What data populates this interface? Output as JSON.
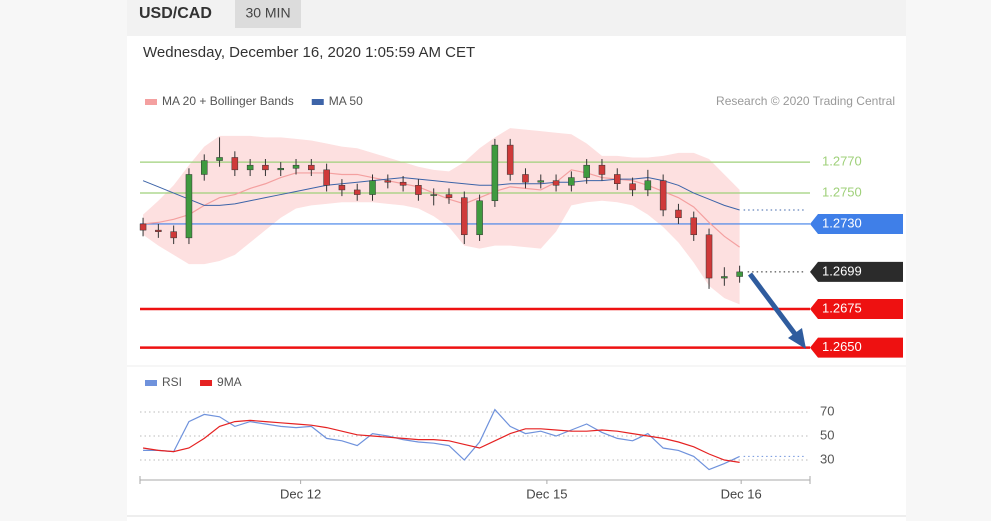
{
  "header": {
    "symbol": "USD/CAD",
    "interval": "30 MIN",
    "datetime": "Wednesday, December 16, 2020 1:05:59 AM CET"
  },
  "chart_data": [
    {
      "type": "candlestick",
      "annotation": "Research © 2020 Trading Central",
      "up_color": "#3f9a3f",
      "down_color": "#cf3a3a",
      "open": [
        1.273,
        1.2726,
        1.2725,
        1.2721,
        1.2762,
        1.2771,
        1.2773,
        1.2765,
        1.2768,
        1.2765,
        1.2766,
        1.2768,
        1.2765,
        1.2755,
        1.2752,
        1.2749,
        1.2758,
        1.2757,
        1.2755,
        1.2749,
        1.2749,
        1.2747,
        1.2723,
        1.2745,
        1.2781,
        1.2762,
        1.2757,
        1.2758,
        1.2755,
        1.276,
        1.2768,
        1.2762,
        1.2756,
        1.2752,
        1.2758,
        1.2739,
        1.2734,
        1.2723,
        1.2695,
        1.2696
      ],
      "high": [
        1.2734,
        1.273,
        1.2729,
        1.2766,
        1.2775,
        1.2786,
        1.2777,
        1.2772,
        1.2772,
        1.277,
        1.2772,
        1.2772,
        1.2769,
        1.2759,
        1.2756,
        1.2762,
        1.2762,
        1.2761,
        1.2759,
        1.2753,
        1.2753,
        1.2751,
        1.2749,
        1.2785,
        1.2785,
        1.2766,
        1.2762,
        1.2762,
        1.2764,
        1.2772,
        1.2772,
        1.2766,
        1.276,
        1.2765,
        1.2762,
        1.2743,
        1.2738,
        1.2727,
        1.2702,
        1.2703
      ],
      "low": [
        1.2722,
        1.2721,
        1.2717,
        1.2717,
        1.2758,
        1.2767,
        1.2761,
        1.2761,
        1.2761,
        1.2761,
        1.2762,
        1.2761,
        1.2751,
        1.2748,
        1.2745,
        1.2745,
        1.2753,
        1.2751,
        1.2745,
        1.2742,
        1.2743,
        1.2717,
        1.2719,
        1.2741,
        1.2758,
        1.2753,
        1.2753,
        1.2751,
        1.2751,
        1.2756,
        1.2758,
        1.2752,
        1.2748,
        1.2748,
        1.2735,
        1.273,
        1.2719,
        1.2688,
        1.269,
        1.2692
      ],
      "close": [
        1.2726,
        1.2725,
        1.2721,
        1.2762,
        1.2771,
        1.2773,
        1.2765,
        1.2768,
        1.2765,
        1.2766,
        1.2768,
        1.2765,
        1.2755,
        1.2752,
        1.2749,
        1.2758,
        1.2757,
        1.2755,
        1.2749,
        1.2749,
        1.2747,
        1.2723,
        1.2745,
        1.2781,
        1.2762,
        1.2757,
        1.2758,
        1.2755,
        1.276,
        1.2768,
        1.2762,
        1.2756,
        1.2752,
        1.2758,
        1.2739,
        1.2734,
        1.2723,
        1.2695,
        1.2696,
        1.2699
      ],
      "series": [
        {
          "name": "MA 20 + Bollinger Bands",
          "color": "#f4a0a0",
          "band_color": "#fde0e0",
          "values": [
            1.273,
            1.2731,
            1.2733,
            1.2736,
            1.2742,
            1.2747,
            1.2749,
            1.2753,
            1.2756,
            1.276,
            1.2763,
            1.2763,
            1.2763,
            1.2762,
            1.2762,
            1.276,
            1.2758,
            1.2756,
            1.2754,
            1.275,
            1.2746,
            1.2743,
            1.2747,
            1.2751,
            1.2754,
            1.2753,
            1.2752,
            1.2757,
            1.2765,
            1.2763,
            1.276,
            1.2759,
            1.2758,
            1.2755,
            1.2751,
            1.2747,
            1.2741,
            1.2731,
            1.2722,
            1.2715
          ],
          "upper": [
            1.2736,
            1.2745,
            1.2755,
            1.2768,
            1.278,
            1.2787,
            1.2787,
            1.2787,
            1.2786,
            1.2786,
            1.2785,
            1.2784,
            1.2782,
            1.278,
            1.2779,
            1.2776,
            1.2773,
            1.277,
            1.2767,
            1.2765,
            1.2764,
            1.277,
            1.2779,
            1.2786,
            1.2792,
            1.2791,
            1.279,
            1.2789,
            1.2788,
            1.2782,
            1.2774,
            1.2774,
            1.2773,
            1.2773,
            1.2774,
            1.2776,
            1.2776,
            1.2772,
            1.2762,
            1.2752
          ],
          "lower": [
            1.2723,
            1.2716,
            1.271,
            1.2704,
            1.2704,
            1.2706,
            1.271,
            1.2718,
            1.2726,
            1.2734,
            1.274,
            1.2742,
            1.2743,
            1.2744,
            1.2744,
            1.2744,
            1.2743,
            1.2742,
            1.274,
            1.2735,
            1.2728,
            1.2716,
            1.2714,
            1.2716,
            1.2716,
            1.2715,
            1.2714,
            1.2725,
            1.2742,
            1.2744,
            1.2745,
            1.2744,
            1.2742,
            1.2736,
            1.2728,
            1.2718,
            1.2705,
            1.269,
            1.2682,
            1.2678
          ]
        },
        {
          "name": "MA 50",
          "color": "#3d64a8",
          "values": [
            1.2758,
            1.2754,
            1.275,
            1.2746,
            1.2742,
            1.2742,
            1.2743,
            1.2745,
            1.2747,
            1.2749,
            1.2751,
            1.2753,
            1.2755,
            1.2756,
            1.2757,
            1.2758,
            1.2759,
            1.276,
            1.2759,
            1.2758,
            1.2757,
            1.2756,
            1.2755,
            1.2755,
            1.2756,
            1.2756,
            1.2756,
            1.2757,
            1.2757,
            1.2758,
            1.2758,
            1.2759,
            1.2759,
            1.276,
            1.2758,
            1.2755,
            1.275,
            1.2746,
            1.2742,
            1.2739
          ]
        }
      ],
      "ylim": [
        1.2642,
        1.2794
      ],
      "xlim": [
        -0.2,
        43.6
      ],
      "levels": [
        {
          "value": 1.277,
          "label": "1.2770",
          "color": "#9fd07a",
          "box": false,
          "line": "thin"
        },
        {
          "value": 1.275,
          "label": "1.2750",
          "color": "#9fd07a",
          "box": false,
          "line": "thin"
        },
        {
          "value": 1.273,
          "label": "1.2730",
          "color": "#3f7fe8",
          "box": true,
          "line": "thin"
        },
        {
          "value": 1.2699,
          "label": "1.2699",
          "color": "#2b2b2b",
          "box": true,
          "line": "dotted"
        },
        {
          "value": 1.2675,
          "label": "1.2675",
          "color": "#ee1111",
          "box": true,
          "line": "thick"
        },
        {
          "value": 1.265,
          "label": "1.2650",
          "color": "#ee1111",
          "box": true,
          "line": "thick"
        }
      ]
    },
    {
      "type": "line",
      "series": [
        {
          "name": "RSI",
          "color": "#6f92dc",
          "values": [
            38,
            38,
            37,
            62,
            68,
            66,
            58,
            62,
            60,
            58,
            57,
            58,
            48,
            46,
            42,
            52,
            50,
            47,
            45,
            44,
            42,
            30,
            45,
            72,
            58,
            52,
            54,
            50,
            55,
            60,
            53,
            48,
            46,
            52,
            40,
            38,
            33,
            22,
            27,
            33
          ]
        },
        {
          "name": "9MA",
          "color": "#e52222",
          "values": [
            40,
            38,
            37,
            40,
            48,
            58,
            62,
            63,
            62,
            61,
            60,
            59,
            57,
            54,
            51,
            50,
            49,
            48,
            47,
            47,
            46,
            43,
            40,
            46,
            52,
            56,
            56,
            55,
            54,
            54,
            55,
            54,
            52,
            50,
            48,
            45,
            41,
            35,
            30,
            28
          ]
        }
      ],
      "ylim": [
        15,
        80
      ],
      "yticks": [
        30,
        50,
        70
      ],
      "grid": true,
      "xlim": [
        -0.2,
        43.6
      ],
      "xticks": [
        {
          "value": 10.3,
          "label": "Dec 12"
        },
        {
          "value": 26.4,
          "label": "Dec 15"
        },
        {
          "value": 39.1,
          "label": "Dec 16"
        }
      ]
    }
  ]
}
